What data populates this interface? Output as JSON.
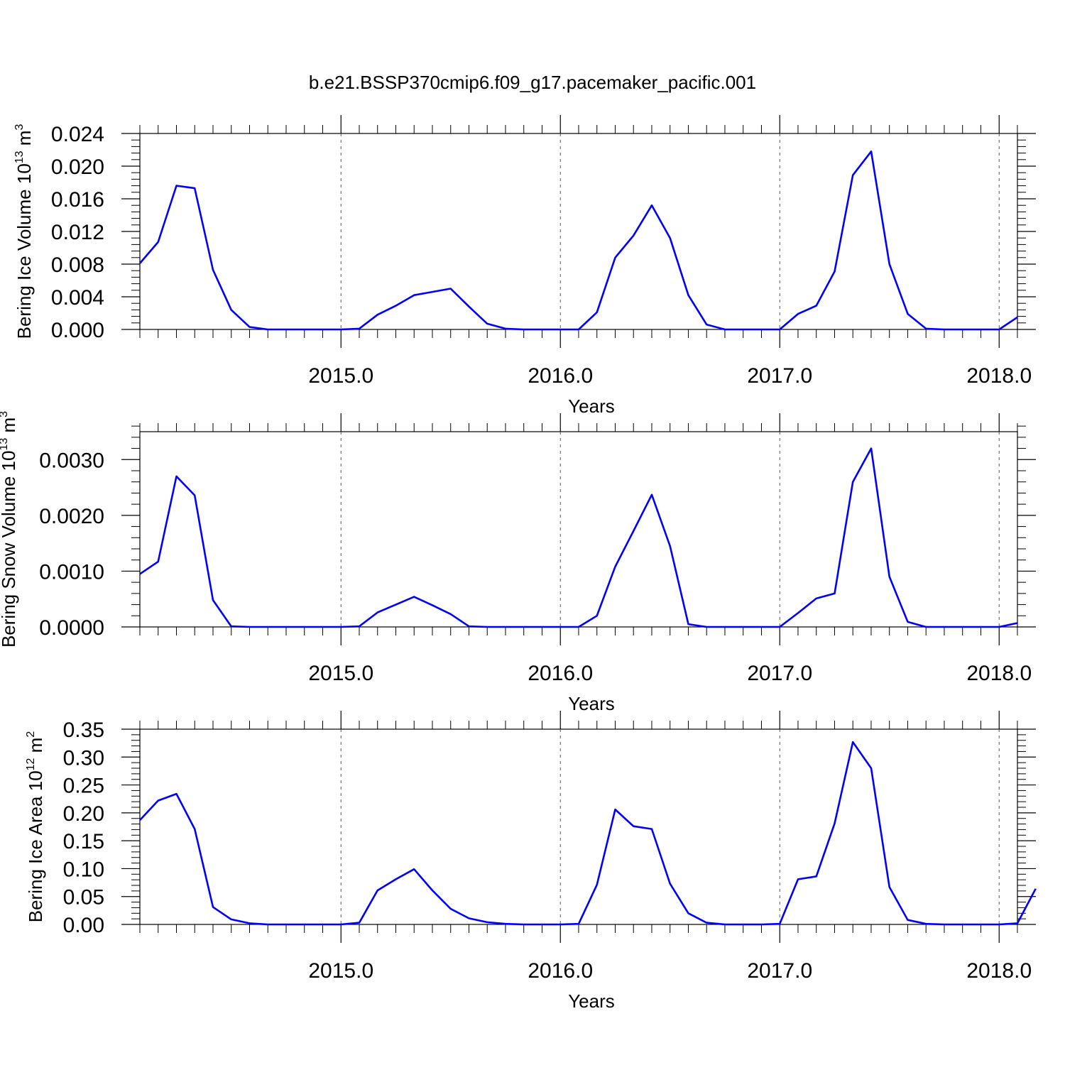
{
  "title": "b.e21.BSSP370cmip6.f09_g17.pacemaker_pacific.001",
  "line_color": "#0000ff",
  "chart_data": [
    {
      "type": "line",
      "ylabel": {
        "main": "Bering Ice Volume 10",
        "sup": "13",
        "unit": " m",
        "unit_sup": "3"
      },
      "xlabel": "Years",
      "xlim": [
        2014.0833,
        2018.0833
      ],
      "ylim": [
        0,
        0.024
      ],
      "ytick_values": [
        0,
        0.004,
        0.008,
        0.012,
        0.016,
        0.02,
        0.024
      ],
      "ytick_labels": [
        "0.000",
        "0.004",
        "0.008",
        "0.012",
        "0.016",
        "0.020",
        "0.024"
      ],
      "minor_step": 0.0008,
      "xtick_values": [
        2015,
        2016,
        2017,
        2018
      ],
      "xtick_labels": [
        "2015.0",
        "2016.0",
        "2017.0",
        "2018.0"
      ],
      "x_start": 2014.0833,
      "x_step": 0.08333,
      "series": [
        {
          "values": [
            0.0081,
            0.0107,
            0.0176,
            0.0173,
            0.0073,
            0.0024,
            0.0003,
            0.0,
            0.0,
            0.0,
            0.0,
            0.0,
            0.0001,
            0.0018,
            0.0029,
            0.0042,
            0.0046,
            0.005,
            0.0028,
            0.0007,
            0.0001,
            0.0,
            0.0,
            0.0,
            0.0,
            0.0021,
            0.0088,
            0.0115,
            0.0152,
            0.0112,
            0.0042,
            0.0006,
            0.0,
            0.0,
            0.0,
            0.0,
            0.0019,
            0.0029,
            0.0071,
            0.0189,
            0.0218,
            0.008,
            0.0019,
            0.0001,
            0.0,
            0.0,
            0.0,
            0.0,
            0.0015
          ]
        }
      ]
    },
    {
      "type": "line",
      "ylabel": {
        "main": "Bering Snow Volume 10",
        "sup": "13",
        "unit": " m",
        "unit_sup": "3"
      },
      "xlabel": "Years",
      "xlim": [
        2014.0833,
        2018.0833
      ],
      "ylim": [
        0,
        0.0035
      ],
      "ytick_values": [
        0,
        0.001,
        0.002,
        0.003
      ],
      "ytick_labels": [
        "0.0000",
        "0.0010",
        "0.0020",
        "0.0030"
      ],
      "minor_step": 0.0002,
      "xtick_values": [
        2015,
        2016,
        2017,
        2018
      ],
      "xtick_labels": [
        "2015.0",
        "2016.0",
        "2017.0",
        "2018.0"
      ],
      "x_start": 2014.0833,
      "x_step": 0.08333,
      "series": [
        {
          "values": [
            0.00095,
            0.00117,
            0.0027,
            0.00236,
            0.00048,
            1e-05,
            0.0,
            0.0,
            0.0,
            0.0,
            0.0,
            0.0,
            1e-05,
            0.00026,
            0.0004,
            0.00054,
            0.00039,
            0.00023,
            1e-05,
            0.0,
            0.0,
            0.0,
            0.0,
            0.0,
            0.0,
            0.0002,
            0.00108,
            0.00172,
            0.00237,
            0.00145,
            5e-05,
            0.0,
            0.0,
            0.0,
            0.0,
            0.0,
            0.00025,
            0.00051,
            0.0006,
            0.0026,
            0.0032,
            0.0009,
            9e-05,
            0.0,
            0.0,
            0.0,
            0.0,
            0.0,
            7e-05
          ]
        }
      ]
    },
    {
      "type": "line",
      "ylabel": {
        "main": "Bering Ice Area 10",
        "sup": "12",
        "unit": " m",
        "unit_sup": "2"
      },
      "xlabel": "Years",
      "xlim": [
        2014.0833,
        2018.0833
      ],
      "ylim": [
        0,
        0.35
      ],
      "ytick_values": [
        0,
        0.05,
        0.1,
        0.15,
        0.2,
        0.25,
        0.3,
        0.35
      ],
      "ytick_labels": [
        "0.00",
        "0.05",
        "0.10",
        "0.15",
        "0.20",
        "0.25",
        "0.30",
        "0.35"
      ],
      "minor_step": 0.01,
      "xtick_values": [
        2015,
        2016,
        2017,
        2018
      ],
      "xtick_labels": [
        "2015.0",
        "2016.0",
        "2017.0",
        "2018.0"
      ],
      "x_start": 2014.0833,
      "x_step": 0.08333,
      "series": [
        {
          "values": [
            0.187,
            0.222,
            0.234,
            0.171,
            0.031,
            0.009,
            0.002,
            0.0,
            0.0,
            0.0,
            0.0,
            0.0,
            0.003,
            0.061,
            0.081,
            0.099,
            0.061,
            0.028,
            0.011,
            0.004,
            0.001,
            0.0,
            0.0,
            0.0,
            0.001,
            0.071,
            0.206,
            0.176,
            0.171,
            0.073,
            0.02,
            0.003,
            0.0,
            0.0,
            0.0,
            0.001,
            0.081,
            0.086,
            0.181,
            0.327,
            0.28,
            0.067,
            0.008,
            0.001,
            0.0,
            0.0,
            0.0,
            0.0,
            0.002,
            0.064
          ]
        }
      ]
    }
  ]
}
